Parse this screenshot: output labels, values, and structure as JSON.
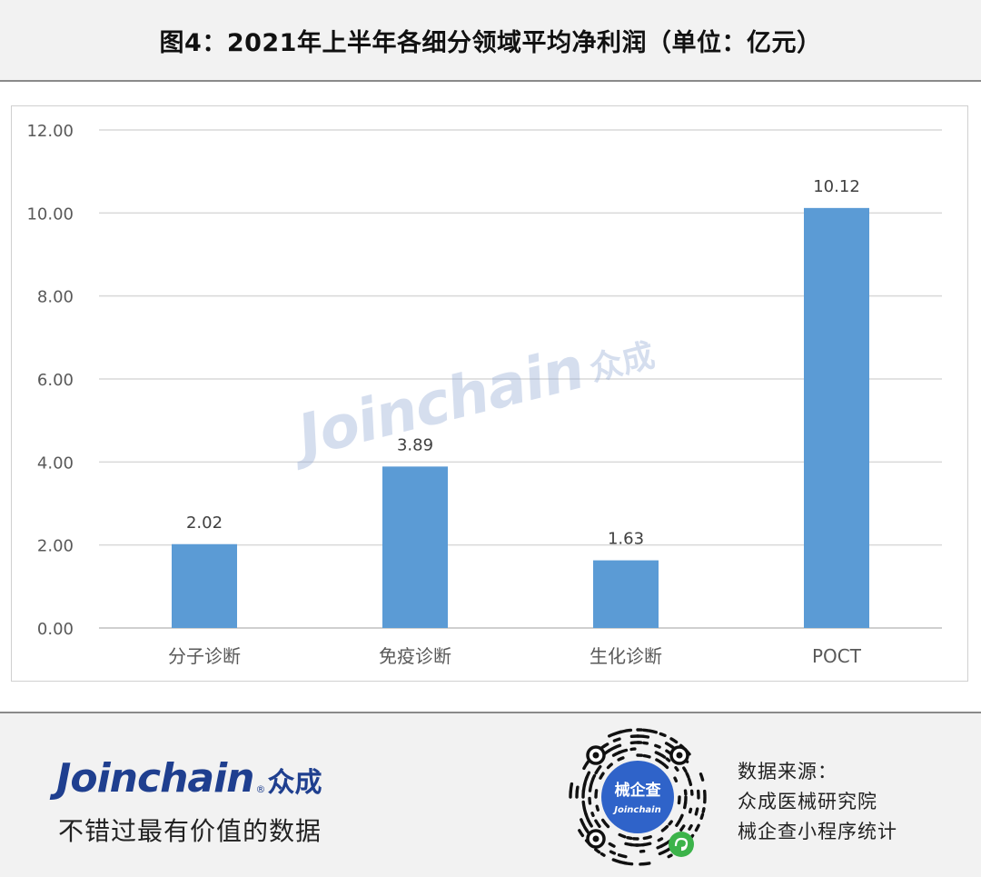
{
  "header": {
    "title": "图4：2021年上半年各细分领域平均净利润（单位：亿元）"
  },
  "chart_data": {
    "type": "bar",
    "categories": [
      "分子诊断",
      "免疫诊断",
      "生化诊断",
      "POCT"
    ],
    "values": [
      2.02,
      3.89,
      1.63,
      10.12
    ],
    "value_labels": [
      "2.02",
      "3.89",
      "1.63",
      "10.12"
    ],
    "ylim": [
      0,
      12
    ],
    "yticks": [
      "0.00",
      "2.00",
      "4.00",
      "6.00",
      "8.00",
      "10.00",
      "12.00"
    ],
    "grid": true,
    "bar_color": "#5b9bd5"
  },
  "watermark": {
    "en": "Joinchain",
    "reg": "®",
    "cn": "众成"
  },
  "footer": {
    "brand_en": "Joinchain",
    "brand_reg": "®",
    "brand_cn": "众成",
    "slogan": "不错过最有价值的数据",
    "qr_title": "械企查",
    "qr_sub": "Joinchain",
    "source_lines": [
      "数据来源：",
      "众成医械研究院",
      "械企查小程序统计"
    ]
  },
  "colors": {
    "brand": "#1f3f8f",
    "bar": "#5b9bd5",
    "grid": "#d9d9d9",
    "qr_center": "#2f63c9",
    "qr_badge": "#3cb34a"
  }
}
